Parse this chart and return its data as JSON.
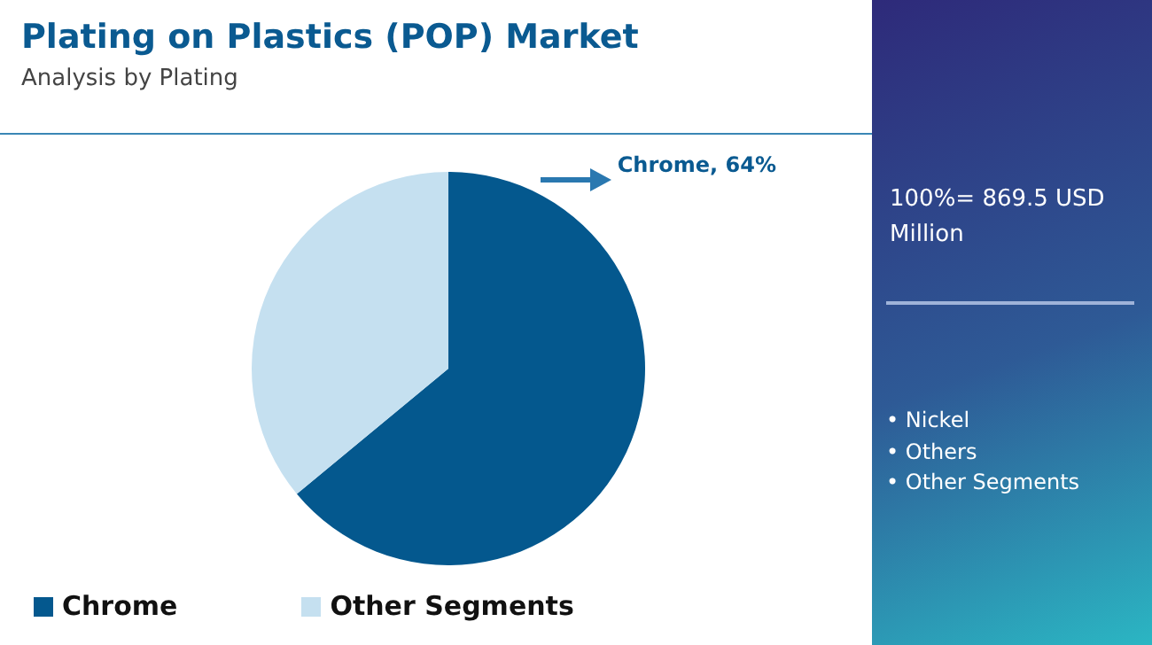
{
  "chart_data": {
    "type": "pie",
    "title": "Plating on Plastics (POP) Market",
    "subtitle": "Analysis by Plating",
    "categories": [
      "Chrome",
      "Other Segments"
    ],
    "values": [
      64,
      36
    ],
    "colors": [
      "#04588e",
      "#c5e0f0"
    ],
    "value_labels": [
      "Chrome, 64%",
      null
    ],
    "legend": "bottom",
    "annotations": [
      "100%= 869.5 USD Million",
      "• Nickel",
      "• Others",
      "• Other Segments"
    ]
  }
}
